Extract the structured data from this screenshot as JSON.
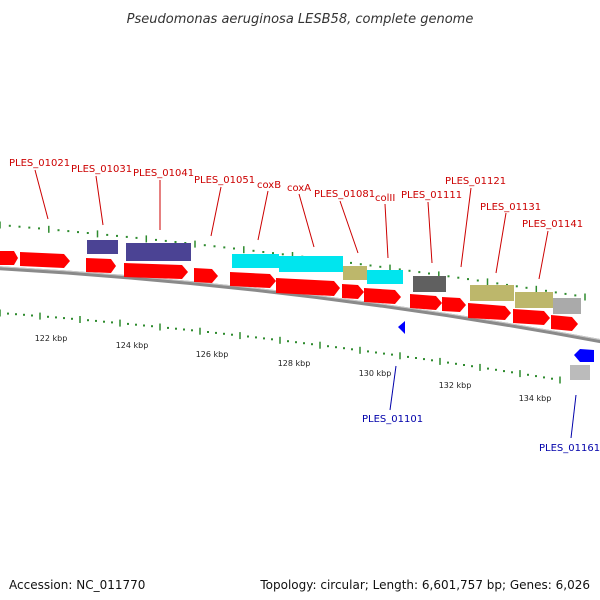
{
  "title": "Pseudomonas aeruginosa LESB58, complete genome",
  "accession_label": "Accession: NC_011770",
  "genome_stats": "Topology: circular; Length: 6,601,757 bp; Genes: 6,026",
  "colors": {
    "backbone": "#8a8a8a",
    "tick": "#2e8b2e",
    "forward_label": "#cc0000",
    "reverse_label": "#0000aa",
    "cds_arrow": "#ff0000",
    "reverse_gene": "#0000ff",
    "feature_slate": "#4b4394",
    "feature_cyan": "#00e5ee",
    "feature_khaki": "#bdb76b",
    "feature_grey": "#aaaaaa",
    "feature_dark": "#606060"
  },
  "scale": {
    "unit": "kbp",
    "labels": [
      "122 kbp",
      "124 kbp",
      "126 kbp",
      "128 kbp",
      "130 kbp",
      "132 kbp",
      "134 kbp"
    ]
  },
  "forward_genes": [
    {
      "label": "PLES_01021",
      "feature": "slate-none"
    },
    {
      "label": "PLES_01031",
      "feature": "slate"
    },
    {
      "label": "PLES_01041",
      "feature": "slate"
    },
    {
      "label": "PLES_01051",
      "feature": "none"
    },
    {
      "label": "coxB",
      "feature": "cyan"
    },
    {
      "label": "coxA",
      "feature": "cyan"
    },
    {
      "label": "PLES_01081",
      "feature": "khaki"
    },
    {
      "label": "colII",
      "feature": "cyan"
    },
    {
      "label": "PLES_01111",
      "feature": "dark"
    },
    {
      "label": "PLES_01121",
      "feature": "none"
    },
    {
      "label": "PLES_01131",
      "feature": "khaki"
    },
    {
      "label": "PLES_01141",
      "feature": "khaki"
    }
  ],
  "reverse_genes": [
    {
      "label": "PLES_01101"
    },
    {
      "label": "PLES_01161"
    }
  ]
}
